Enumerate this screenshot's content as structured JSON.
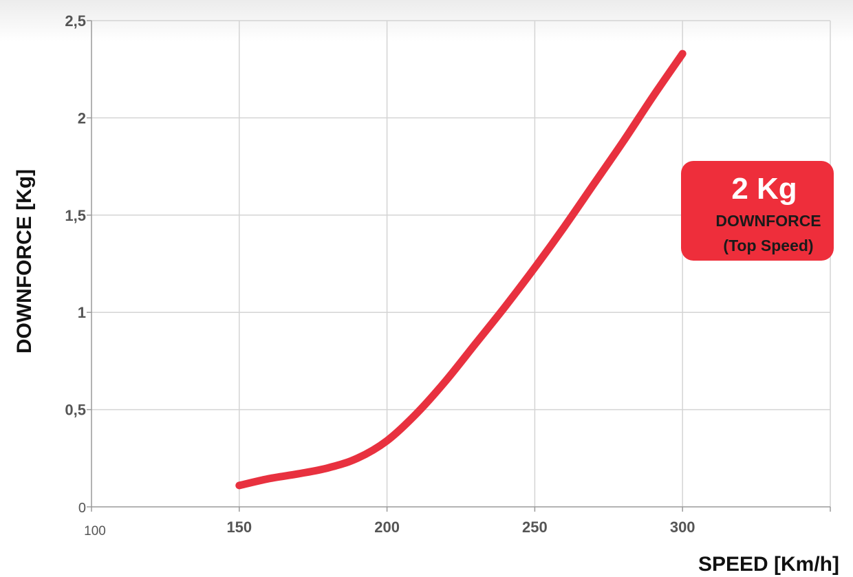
{
  "chart_data": {
    "type": "line",
    "title": "",
    "xlabel": "SPEED [Km/h]",
    "ylabel": "DOWNFORCE [Kg]",
    "xlim": [
      100,
      350
    ],
    "ylim": [
      0,
      2.5
    ],
    "x_ticks": [
      {
        "value": 100,
        "label": "100"
      },
      {
        "value": 150,
        "label": "150"
      },
      {
        "value": 200,
        "label": "200"
      },
      {
        "value": 250,
        "label": "250"
      },
      {
        "value": 300,
        "label": "300"
      }
    ],
    "y_ticks": [
      {
        "value": 0,
        "label": "0"
      },
      {
        "value": 0.5,
        "label": "0,5"
      },
      {
        "value": 1,
        "label": "1"
      },
      {
        "value": 1.5,
        "label": "1,5"
      },
      {
        "value": 2,
        "label": "2"
      },
      {
        "value": 2.5,
        "label": "2,5"
      }
    ],
    "grid": true,
    "legend": "none",
    "series": [
      {
        "color": "#e8313f",
        "x": [
          150,
          160,
          170,
          180,
          190,
          200,
          210,
          220,
          230,
          240,
          250,
          260,
          270,
          280,
          290,
          300
        ],
        "y": [
          0.11,
          0.145,
          0.17,
          0.2,
          0.25,
          0.34,
          0.48,
          0.65,
          0.84,
          1.03,
          1.23,
          1.44,
          1.66,
          1.88,
          2.11,
          2.33
        ]
      }
    ],
    "annotation": {
      "value_text": "2 Kg",
      "line1": "DOWNFORCE",
      "line2": "(Top Speed)",
      "color": "#ee2e3b"
    }
  }
}
